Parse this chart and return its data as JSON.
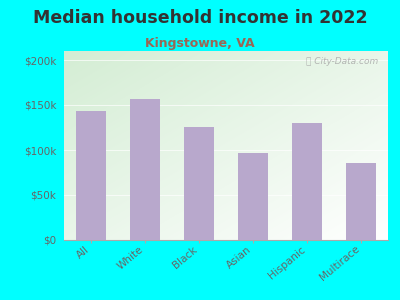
{
  "title": "Median household income in 2022",
  "subtitle": "Kingstowne, VA",
  "categories": [
    "All",
    "White",
    "Black",
    "Asian",
    "Hispanic",
    "Multirace"
  ],
  "values": [
    143000,
    157000,
    126000,
    97000,
    130000,
    86000
  ],
  "bar_color": "#b8a8cc",
  "background_outer": "#00ffff",
  "background_inner_topleft": "#d4edd4",
  "background_inner_topright": "#e8eef5",
  "background_inner_bottom": "#f0f5f0",
  "title_color": "#333333",
  "subtitle_color": "#996655",
  "tick_label_color": "#666666",
  "watermark": "City-Data.com",
  "ylim": [
    0,
    210000
  ],
  "yticks": [
    0,
    50000,
    100000,
    150000,
    200000
  ],
  "ytick_labels": [
    "$0",
    "$50k",
    "$100k",
    "$150k",
    "$200k"
  ],
  "title_fontsize": 12.5,
  "subtitle_fontsize": 9,
  "tick_fontsize": 7.5
}
